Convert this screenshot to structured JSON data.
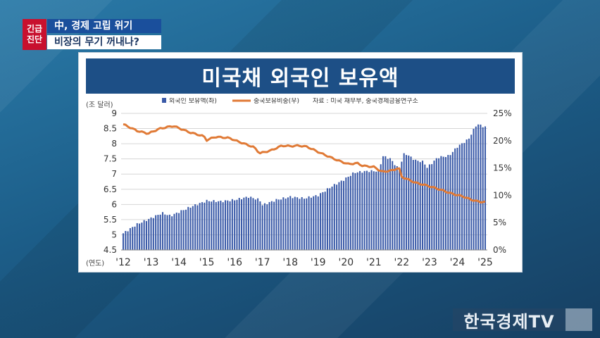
{
  "badge": {
    "line1": "긴급",
    "line2": "진단"
  },
  "headline": {
    "line1": "中, 경제 고립 위기",
    "line2": "비장의 무기 꺼내나?"
  },
  "card_title": "미국채 외국인 보유액",
  "logo_text": "한국경제TV",
  "chart_data": {
    "type": "bar",
    "title": "미국채 외국인 보유액",
    "y_unit_label": "(조 달러)",
    "x_unit_label": "(연도)",
    "x_tick_labels": [
      "'12",
      "'13",
      "'14",
      "'15",
      "'16",
      "'17",
      "'18",
      "'19",
      "'20",
      "'21",
      "'22",
      "'23",
      "'24",
      "'25"
    ],
    "ylim": [
      4.5,
      9
    ],
    "y_ticks": [
      "4.5",
      "5",
      "5.5",
      "6",
      "6.5",
      "7",
      "7.5",
      "8",
      "8.5",
      "9"
    ],
    "y2lim": [
      0,
      25
    ],
    "y2_ticks": [
      "0%",
      "5%",
      "10%",
      "15%",
      "20%",
      "25%"
    ],
    "legend": {
      "bar": "외국인 보유액(좌)",
      "line": "중국보유비중(우)",
      "source": "자료 : 미국 재무부, 중국경제금융연구소"
    },
    "grid": true,
    "colors": {
      "bar": "#3a5aa8",
      "line": "#e07a36"
    },
    "series": [
      {
        "name": "외국인 보유액(좌)",
        "axis": "left",
        "anchors": [
          [
            2012.0,
            5.05
          ],
          [
            2012.5,
            5.35
          ],
          [
            2013.0,
            5.55
          ],
          [
            2013.4,
            5.72
          ],
          [
            2013.7,
            5.62
          ],
          [
            2014.0,
            5.75
          ],
          [
            2014.5,
            5.95
          ],
          [
            2015.0,
            6.12
          ],
          [
            2015.5,
            6.1
          ],
          [
            2016.0,
            6.15
          ],
          [
            2016.5,
            6.25
          ],
          [
            2016.9,
            6.15
          ],
          [
            2017.0,
            5.98
          ],
          [
            2017.5,
            6.15
          ],
          [
            2018.0,
            6.25
          ],
          [
            2018.5,
            6.2
          ],
          [
            2019.0,
            6.3
          ],
          [
            2019.5,
            6.6
          ],
          [
            2019.9,
            6.8
          ],
          [
            2020.3,
            7.05
          ],
          [
            2020.8,
            7.1
          ],
          [
            2021.2,
            7.1
          ],
          [
            2021.3,
            7.6
          ],
          [
            2021.6,
            7.5
          ],
          [
            2021.9,
            7.15
          ],
          [
            2022.1,
            7.7
          ],
          [
            2022.5,
            7.45
          ],
          [
            2022.8,
            7.4
          ],
          [
            2022.9,
            7.2
          ],
          [
            2023.3,
            7.55
          ],
          [
            2023.7,
            7.6
          ],
          [
            2024.0,
            7.9
          ],
          [
            2024.4,
            8.15
          ],
          [
            2024.7,
            8.65
          ],
          [
            2025.0,
            8.55
          ]
        ]
      },
      {
        "name": "중국보유비중(우)",
        "axis": "right",
        "anchors": [
          [
            2012.0,
            23.0
          ],
          [
            2012.5,
            21.8
          ],
          [
            2012.9,
            21.3
          ],
          [
            2013.3,
            22.2
          ],
          [
            2013.8,
            22.7
          ],
          [
            2014.0,
            22.3
          ],
          [
            2014.4,
            21.5
          ],
          [
            2014.9,
            20.8
          ],
          [
            2015.0,
            20.1
          ],
          [
            2015.3,
            20.7
          ],
          [
            2015.8,
            20.5
          ],
          [
            2016.1,
            19.9
          ],
          [
            2016.7,
            18.8
          ],
          [
            2016.9,
            17.7
          ],
          [
            2017.3,
            18.2
          ],
          [
            2017.7,
            19.1
          ],
          [
            2018.0,
            19.0
          ],
          [
            2018.3,
            19.1
          ],
          [
            2018.6,
            18.9
          ],
          [
            2019.1,
            17.7
          ],
          [
            2019.7,
            16.4
          ],
          [
            2020.1,
            15.7
          ],
          [
            2020.4,
            15.9
          ],
          [
            2020.6,
            15.4
          ],
          [
            2021.0,
            15.2
          ],
          [
            2021.3,
            14.3
          ],
          [
            2021.7,
            14.6
          ],
          [
            2021.9,
            15.1
          ],
          [
            2022.0,
            13.4
          ],
          [
            2022.5,
            12.3
          ],
          [
            2022.9,
            11.8
          ],
          [
            2023.3,
            11.2
          ],
          [
            2023.8,
            10.3
          ],
          [
            2024.2,
            9.8
          ],
          [
            2024.5,
            9.2
          ],
          [
            2024.8,
            8.8
          ],
          [
            2025.0,
            8.8
          ]
        ]
      }
    ]
  }
}
